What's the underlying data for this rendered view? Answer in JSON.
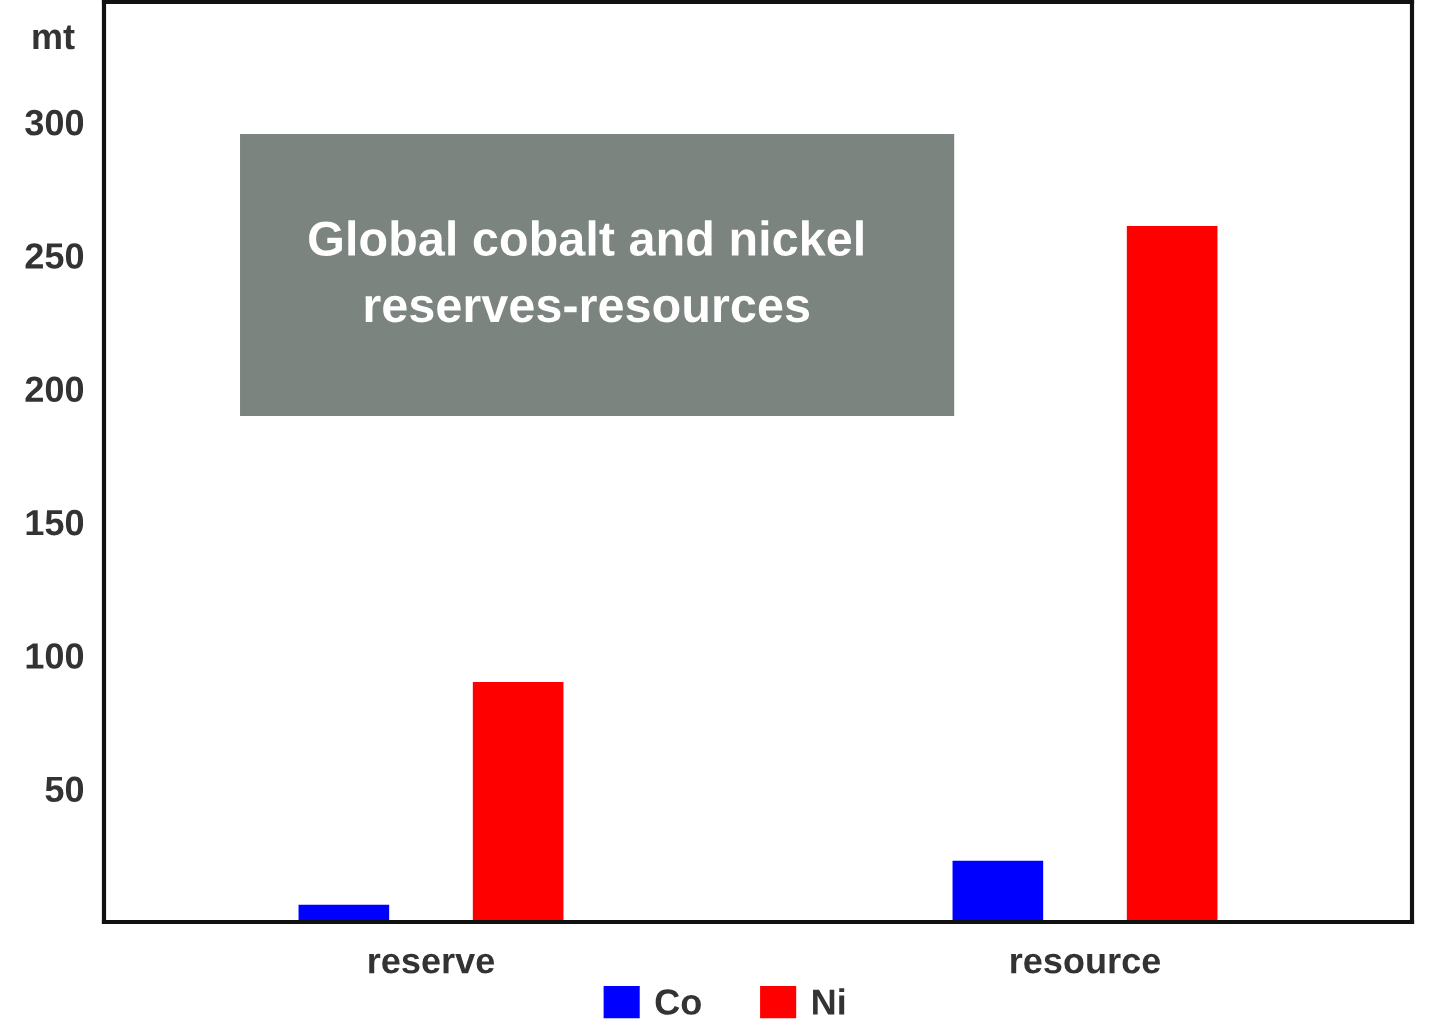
{
  "chart_data": {
    "type": "bar",
    "title": "Global cobalt and nickel\nreserves-resources",
    "ylabel": "mt",
    "categories": [
      "reserve",
      "resource"
    ],
    "series": [
      {
        "name": "Co",
        "color": "#0000ff",
        "values": [
          6.5,
          23
        ]
      },
      {
        "name": "Ni",
        "color": "#ff0000",
        "values": [
          90,
          261
        ]
      }
    ],
    "ylim": [
      0,
      345
    ],
    "yticks": [
      50,
      100,
      150,
      200,
      250,
      300
    ],
    "legend": "bottom"
  }
}
